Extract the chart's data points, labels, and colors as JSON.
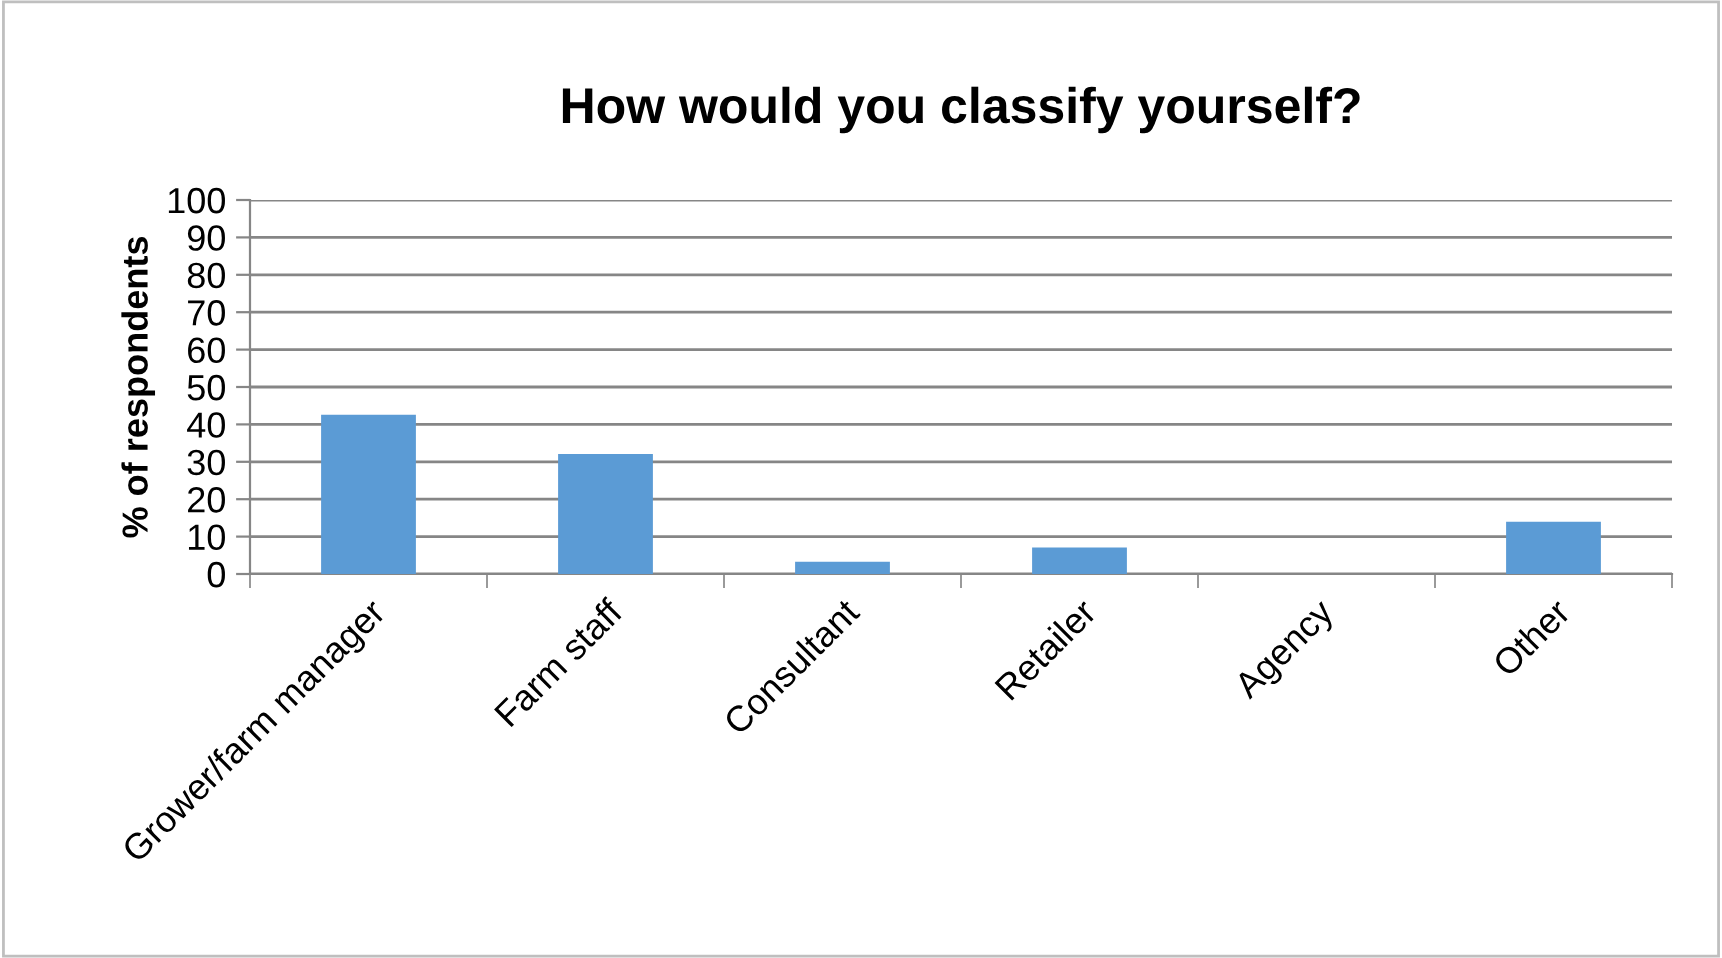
{
  "chart_data": {
    "type": "bar",
    "title": "How would you classify yourself?",
    "ylabel": "% of respondents",
    "categories": [
      "Grower/farm manager",
      "Farm staff",
      "Consultant",
      "Retailer",
      "Agency",
      "Other"
    ],
    "values": [
      42.6,
      32.1,
      3.3,
      7.1,
      0,
      14.0
    ],
    "color": "#5b9bd5",
    "ylim": [
      0,
      100
    ],
    "yticks": [
      0,
      10,
      20,
      30,
      40,
      50,
      60,
      70,
      80,
      90,
      100
    ],
    "grid": "y"
  }
}
